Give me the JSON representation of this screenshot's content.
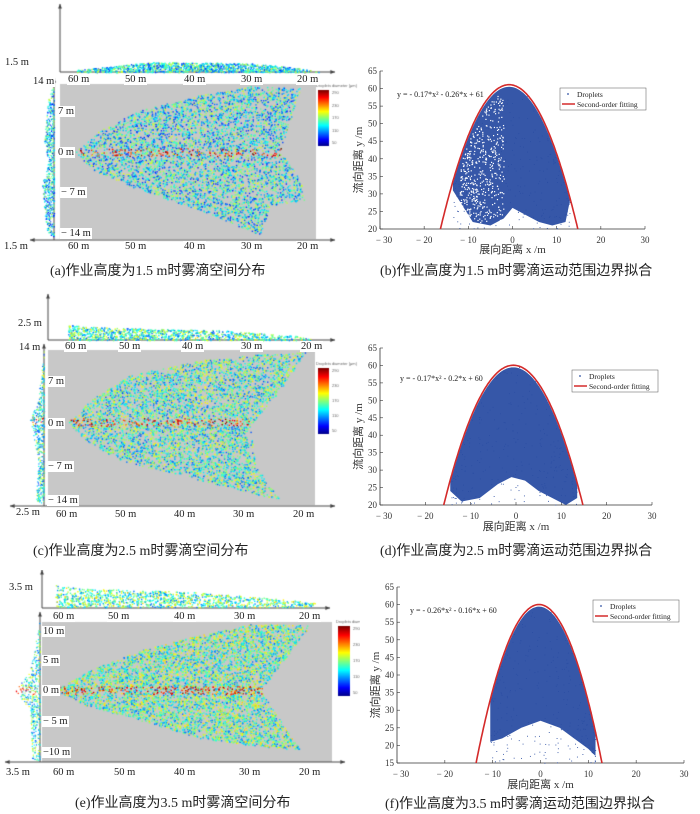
{
  "panels": [
    {
      "id": "a",
      "caption": "(a)作业高度为1.5 m时雾滴空间分布",
      "height_label": "1.5 m",
      "height_label_bottom": "1.5 m",
      "x_ticks": [
        "60 m",
        "50 m",
        "40 m",
        "30 m",
        "20 m"
      ],
      "y_ticks": [
        "14 m",
        "7 m",
        "0 m",
        "− 7 m",
        "− 14 m"
      ]
    },
    {
      "id": "c",
      "caption": "(c)作业高度为2.5 m时雾滴空间分布",
      "height_label": "2.5 m",
      "height_label_bottom": "2.5 m",
      "x_ticks": [
        "60 m",
        "50 m",
        "40 m",
        "30 m",
        "20 m"
      ],
      "y_ticks": [
        "14 m",
        "7 m",
        "0 m",
        "− 7 m",
        "− 14 m"
      ]
    },
    {
      "id": "e",
      "caption": "(e)作业高度为3.5 m时雾滴空间分布",
      "height_label": "3.5 m",
      "height_label_bottom": "3.5 m",
      "x_ticks": [
        "60 m",
        "50 m",
        "40 m",
        "30 m",
        "20 m"
      ],
      "y_ticks": [
        "10 m",
        "5 m",
        "0 m",
        "− 5 m",
        "−10 m"
      ]
    }
  ],
  "colorbar": {
    "title": "Droplets diameter (μm)",
    "ticks": [
      290,
      230,
      170,
      110,
      50
    ],
    "colormap": "jet"
  },
  "chart_data": [
    {
      "id": "b",
      "type": "scatter",
      "caption": "(b)作业高度为1.5 m时雾滴运动范围边界拟合",
      "xlabel": "展向距离  x /m",
      "ylabel": "流向距离  y /m",
      "xlim": [
        -30,
        30
      ],
      "ylim": [
        20,
        65
      ],
      "x_ticks": [
        -30,
        -20,
        -10,
        0,
        10,
        20,
        30
      ],
      "y_ticks": [
        20,
        25,
        30,
        35,
        40,
        45,
        50,
        55,
        60,
        65
      ],
      "equation": "y = - 0.17*x² - 0.26*x + 61",
      "fit": {
        "a": -0.17,
        "b": -0.26,
        "c": 61
      },
      "legend": [
        "Droplets",
        "Second-order fitting"
      ],
      "legend_position": "top-right",
      "droplet_extent_x": [
        -13.5,
        13
      ],
      "lower_envelope": [
        [
          -13.5,
          31
        ],
        [
          -12,
          28
        ],
        [
          -9,
          22
        ],
        [
          -5,
          21
        ],
        [
          -2,
          23
        ],
        [
          0,
          26
        ],
        [
          3,
          24
        ],
        [
          6,
          22
        ],
        [
          9,
          21
        ],
        [
          12,
          22
        ],
        [
          13,
          28
        ]
      ],
      "colors": {
        "droplets": "#2b4ea3",
        "fit": "#d42a2a"
      }
    },
    {
      "id": "d",
      "type": "scatter",
      "caption": "(d)作业高度为2.5 m时雾滴运动范围边界拟合",
      "xlabel": "展向距离  x /m",
      "ylabel": "流向距离  y /m",
      "xlim": [
        -30,
        30
      ],
      "ylim": [
        20,
        65
      ],
      "x_ticks": [
        -30,
        -20,
        -10,
        0,
        10,
        20,
        30
      ],
      "y_ticks": [
        20,
        25,
        30,
        35,
        40,
        45,
        50,
        55,
        60,
        65
      ],
      "equation": "y = - 0.17*x² - 0.2*x + 60",
      "fit": {
        "a": -0.17,
        "b": -0.2,
        "c": 60
      },
      "legend": [
        "Droplets",
        "Second-order fitting"
      ],
      "legend_position": "top-right",
      "droplet_extent_x": [
        -14.5,
        13.5
      ],
      "lower_envelope": [
        [
          -14.5,
          24
        ],
        [
          -12,
          21
        ],
        [
          -8,
          22
        ],
        [
          -4,
          26
        ],
        [
          -1,
          28
        ],
        [
          2,
          27
        ],
        [
          5,
          24
        ],
        [
          8,
          22
        ],
        [
          11,
          20
        ],
        [
          13.5,
          22
        ]
      ],
      "colors": {
        "droplets": "#2b4ea3",
        "fit": "#d42a2a"
      }
    },
    {
      "id": "f",
      "type": "scatter",
      "caption": "(f)作业高度为3.5 m时雾滴运动范围边界拟合",
      "xlabel": "展向距离  x /m",
      "ylabel": "流向距离  y /m",
      "xlim": [
        -30,
        30
      ],
      "ylim": [
        15,
        65
      ],
      "x_ticks": [
        -30,
        -20,
        -10,
        0,
        10,
        20,
        30
      ],
      "y_ticks": [
        15,
        20,
        25,
        30,
        35,
        40,
        45,
        50,
        55,
        60,
        65
      ],
      "equation": "y = - 0.26*x² - 0.16*x + 60",
      "fit": {
        "a": -0.26,
        "b": -0.16,
        "c": 60
      },
      "legend": [
        "Droplets",
        "Second-order fitting"
      ],
      "legend_position": "top-right",
      "droplet_extent_x": [
        -10.5,
        11.5
      ],
      "lower_envelope": [
        [
          -10.5,
          30
        ],
        [
          -10.5,
          21
        ],
        [
          -8,
          22
        ],
        [
          -4,
          25
        ],
        [
          0,
          27
        ],
        [
          4,
          25
        ],
        [
          7,
          22
        ],
        [
          10,
          19
        ],
        [
          11.5,
          17
        ],
        [
          11.5,
          20
        ]
      ],
      "colors": {
        "droplets": "#2b4ea3",
        "fit": "#d42a2a"
      }
    }
  ]
}
